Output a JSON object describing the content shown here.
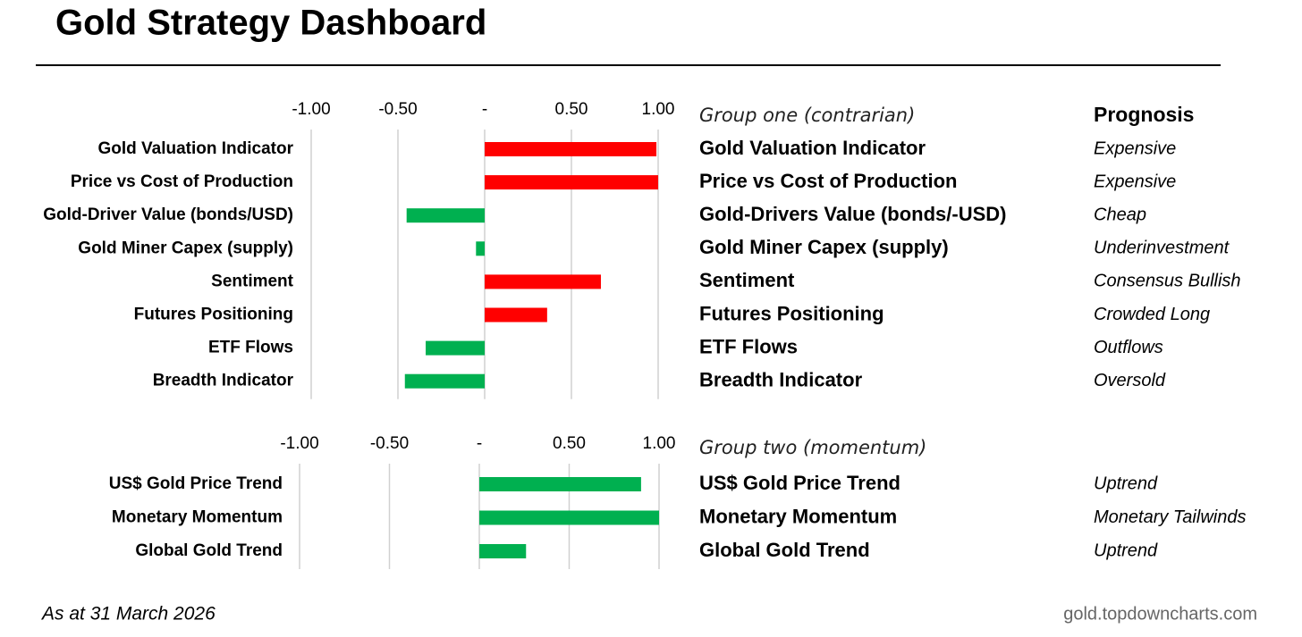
{
  "title": "Gold Strategy Dashboard",
  "chart_data": [
    {
      "type": "bar",
      "orientation": "horizontal",
      "categories": [
        "Gold Valuation Indicator",
        "Price vs Cost of Production",
        "Gold-Driver Value (bonds/USD)",
        "Gold Miner Capex (supply)",
        "Sentiment",
        "Futures Positioning",
        "ETF Flows",
        "Breadth Indicator"
      ],
      "values": [
        0.99,
        1.0,
        -0.45,
        -0.05,
        0.67,
        0.36,
        -0.34,
        -0.46
      ],
      "colors": [
        "#ff0000",
        "#ff0000",
        "#00b050",
        "#00b050",
        "#ff0000",
        "#ff0000",
        "#00b050",
        "#00b050"
      ],
      "xlim": [
        -1,
        1
      ],
      "xticks": [
        {
          "value": -1,
          "label": "-1.00"
        },
        {
          "value": -0.5,
          "label": "-0.50"
        },
        {
          "value": 0,
          "label": "-"
        },
        {
          "value": 0.5,
          "label": "0.50"
        },
        {
          "value": 1,
          "label": "1.00"
        }
      ],
      "grid": true,
      "group_title": "Group one (contrarian)",
      "prognosis_title": "Prognosis",
      "indicators": [
        "Gold Valuation Indicator",
        "Price vs Cost of Production",
        "Gold-Drivers Value (bonds/-USD)",
        "Gold Miner Capex (supply)",
        "Sentiment",
        "Futures Positioning",
        "ETF Flows",
        "Breadth Indicator"
      ],
      "prognosis": [
        "Expensive",
        "Expensive",
        "Cheap",
        "Underinvestment",
        "Consensus Bullish",
        "Crowded Long",
        "Outflows",
        "Oversold"
      ]
    },
    {
      "type": "bar",
      "orientation": "horizontal",
      "categories": [
        "US$ Gold Price Trend",
        "Monetary Momentum",
        "Global Gold Trend"
      ],
      "values": [
        0.9,
        1.0,
        0.26
      ],
      "colors": [
        "#00b050",
        "#00b050",
        "#00b050"
      ],
      "xlim": [
        -1,
        1
      ],
      "xticks": [
        {
          "value": -1,
          "label": "-1.00"
        },
        {
          "value": -0.5,
          "label": "-0.50"
        },
        {
          "value": 0,
          "label": "-"
        },
        {
          "value": 0.5,
          "label": "0.50"
        },
        {
          "value": 1,
          "label": "1.00"
        }
      ],
      "grid": true,
      "group_title": "Group two (momentum)",
      "indicators": [
        "US$ Gold Price Trend",
        "Monetary Momentum",
        "Global Gold Trend"
      ],
      "prognosis": [
        "Uptrend",
        "Monetary Tailwinds",
        "Uptrend"
      ]
    }
  ],
  "footer": {
    "date": "As at 31 March 2026",
    "source": "gold.topdowncharts.com"
  }
}
